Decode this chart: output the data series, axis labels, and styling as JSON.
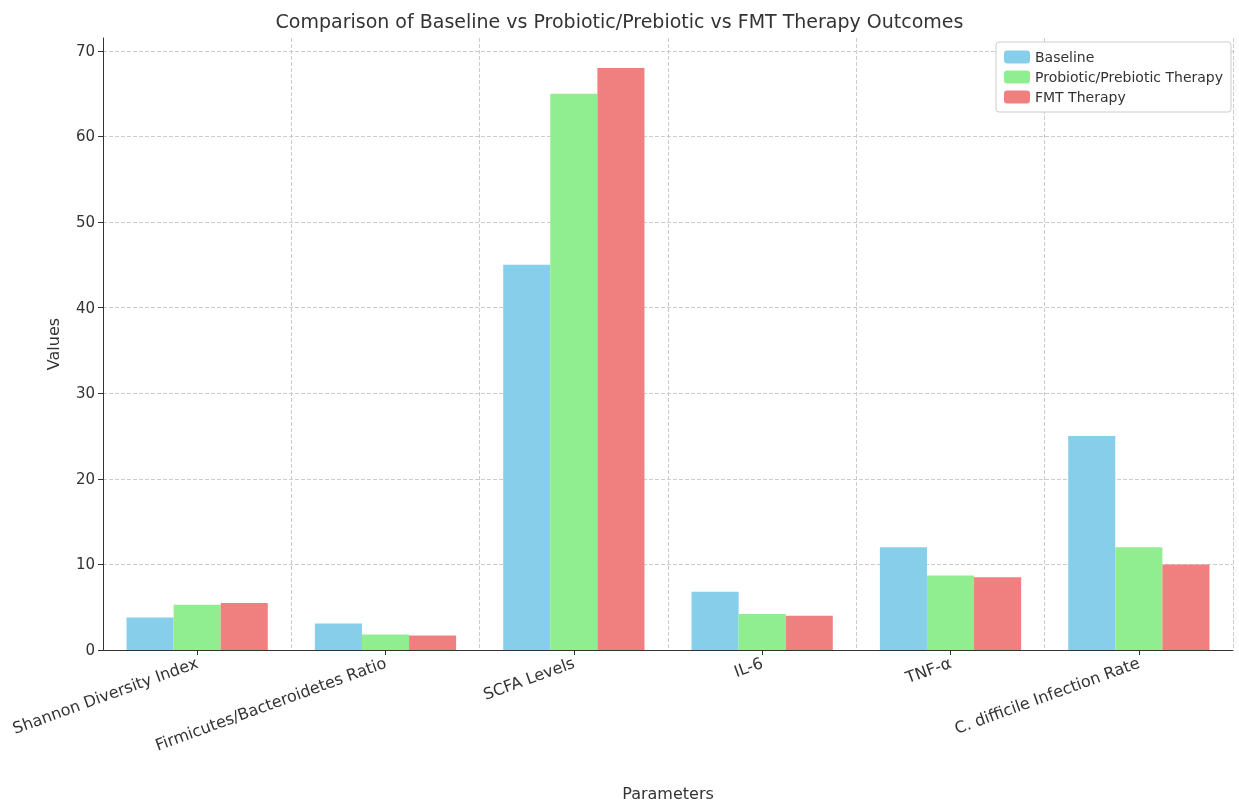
{
  "chart_data": {
    "type": "bar",
    "title": "Comparison of Baseline vs Probiotic/Prebiotic vs FMT Therapy Outcomes",
    "xlabel": "Parameters",
    "ylabel": "Values",
    "categories": [
      "Shannon Diversity Index",
      "Firmicutes/Bacteroidetes Ratio",
      "SCFA Levels",
      "IL-6",
      "TNF-α",
      "C. difficile Infection Rate"
    ],
    "series": [
      {
        "name": "Baseline",
        "color": "#87ceeb",
        "values": [
          3.8,
          3.1,
          45,
          6.8,
          12,
          25
        ]
      },
      {
        "name": "Probiotic/Prebiotic Therapy",
        "color": "#90ee90",
        "values": [
          5.3,
          1.8,
          65,
          4.2,
          8.7,
          12
        ]
      },
      {
        "name": "FMT Therapy",
        "color": "#f08080",
        "values": [
          5.5,
          1.7,
          68,
          4.0,
          8.5,
          10
        ]
      }
    ],
    "ylim": [
      0,
      71.5
    ],
    "yticks": [
      0,
      10,
      20,
      30,
      40,
      50,
      60,
      70
    ],
    "grid": true,
    "legend": "top right"
  }
}
